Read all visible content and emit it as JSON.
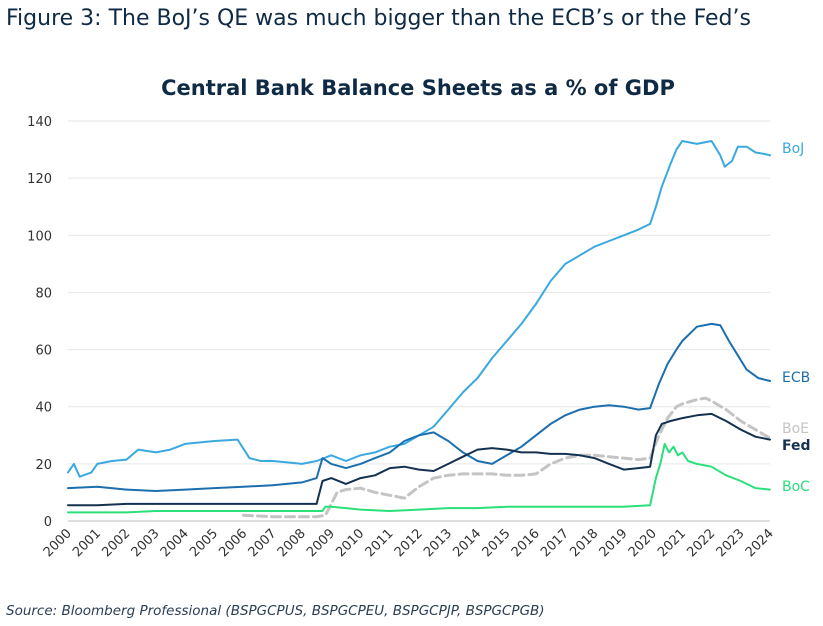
{
  "figure_title": "Figure 3: The BoJ’s QE was much bigger than the ECB’s or the Fed’s",
  "source": "Source: Bloomberg Professional (BSPGCPUS, BSPGCPEU, BSPGCPJP, BSPGCPGB)",
  "chart_data": {
    "type": "line",
    "title": "Central Bank Balance Sheets as a % of GDP",
    "xlabel": "",
    "ylabel": "",
    "ylim": [
      0,
      140
    ],
    "xlim": [
      2000,
      2024
    ],
    "yticks": [
      0,
      20,
      40,
      60,
      80,
      100,
      120,
      140
    ],
    "xticks": [
      "2000",
      "2001",
      "2002",
      "2003",
      "2004",
      "2005",
      "2006",
      "2007",
      "2008",
      "2009",
      "2010",
      "2011",
      "2012",
      "2013",
      "2014",
      "2015",
      "2016",
      "2017",
      "2018",
      "2019",
      "2020",
      "2021",
      "2022",
      "2023",
      "2024"
    ],
    "grid": "horizontal",
    "legend": "series labels at right end of lines",
    "series": [
      {
        "name": "BoJ",
        "color": "#3aa9df",
        "dash": false,
        "points": [
          [
            2000,
            17
          ],
          [
            2000.2,
            20
          ],
          [
            2000.4,
            15.5
          ],
          [
            2000.8,
            17
          ],
          [
            2001,
            20
          ],
          [
            2001.5,
            21
          ],
          [
            2002,
            21.5
          ],
          [
            2002.4,
            25
          ],
          [
            2003,
            24
          ],
          [
            2003.5,
            25
          ],
          [
            2004,
            27
          ],
          [
            2005,
            28
          ],
          [
            2005.8,
            28.5
          ],
          [
            2006.2,
            22
          ],
          [
            2006.6,
            21
          ],
          [
            2007,
            21
          ],
          [
            2007.5,
            20.5
          ],
          [
            2008,
            20
          ],
          [
            2008.5,
            21
          ],
          [
            2009,
            23
          ],
          [
            2009.5,
            21
          ],
          [
            2010,
            23
          ],
          [
            2010.5,
            24
          ],
          [
            2011,
            26
          ],
          [
            2011.5,
            27
          ],
          [
            2012,
            30
          ],
          [
            2012.5,
            33
          ],
          [
            2013,
            39
          ],
          [
            2013.5,
            45
          ],
          [
            2014,
            50
          ],
          [
            2014.5,
            57
          ],
          [
            2015,
            63
          ],
          [
            2015.5,
            69
          ],
          [
            2016,
            76
          ],
          [
            2016.5,
            84
          ],
          [
            2017,
            90
          ],
          [
            2017.5,
            93
          ],
          [
            2018,
            96
          ],
          [
            2018.5,
            98
          ],
          [
            2019,
            100
          ],
          [
            2019.5,
            102
          ],
          [
            2019.9,
            104
          ],
          [
            2020.1,
            110
          ],
          [
            2020.3,
            117
          ],
          [
            2020.6,
            125
          ],
          [
            2020.8,
            130
          ],
          [
            2021,
            133
          ],
          [
            2021.5,
            132
          ],
          [
            2022,
            133
          ],
          [
            2022.3,
            128
          ],
          [
            2022.45,
            124
          ],
          [
            2022.7,
            126
          ],
          [
            2022.9,
            131
          ],
          [
            2023.2,
            131
          ],
          [
            2023.5,
            129
          ],
          [
            2023.8,
            128.5
          ],
          [
            2024,
            128
          ]
        ]
      },
      {
        "name": "ECB",
        "color": "#1b6fae",
        "dash": false,
        "points": [
          [
            2000,
            11.5
          ],
          [
            2001,
            12
          ],
          [
            2002,
            11
          ],
          [
            2003,
            10.5
          ],
          [
            2004,
            11
          ],
          [
            2005,
            11.5
          ],
          [
            2006,
            12
          ],
          [
            2007,
            12.5
          ],
          [
            2008,
            13.5
          ],
          [
            2008.5,
            15
          ],
          [
            2008.7,
            22
          ],
          [
            2009,
            20
          ],
          [
            2009.5,
            18.5
          ],
          [
            2010,
            20
          ],
          [
            2010.5,
            22
          ],
          [
            2011,
            24
          ],
          [
            2011.5,
            28
          ],
          [
            2012,
            30
          ],
          [
            2012.5,
            31
          ],
          [
            2013,
            28
          ],
          [
            2013.5,
            24
          ],
          [
            2014,
            21
          ],
          [
            2014.5,
            20
          ],
          [
            2015,
            23
          ],
          [
            2015.5,
            26
          ],
          [
            2016,
            30
          ],
          [
            2016.5,
            34
          ],
          [
            2017,
            37
          ],
          [
            2017.5,
            39
          ],
          [
            2018,
            40
          ],
          [
            2018.5,
            40.5
          ],
          [
            2019,
            40
          ],
          [
            2019.5,
            39
          ],
          [
            2019.9,
            39.5
          ],
          [
            2020.2,
            48
          ],
          [
            2020.5,
            55
          ],
          [
            2020.8,
            60
          ],
          [
            2021,
            63
          ],
          [
            2021.5,
            68
          ],
          [
            2022,
            69
          ],
          [
            2022.3,
            68.5
          ],
          [
            2022.6,
            63
          ],
          [
            2022.9,
            58
          ],
          [
            2023.2,
            53
          ],
          [
            2023.6,
            50
          ],
          [
            2024,
            49
          ]
        ]
      },
      {
        "name": "BoE",
        "color": "#c4c4c4",
        "dash": true,
        "points": [
          [
            2006,
            2
          ],
          [
            2007,
            1.5
          ],
          [
            2008,
            1.5
          ],
          [
            2008.5,
            1.5
          ],
          [
            2008.8,
            2
          ],
          [
            2009,
            6
          ],
          [
            2009.2,
            10
          ],
          [
            2009.5,
            11
          ],
          [
            2010,
            11.5
          ],
          [
            2010.5,
            10
          ],
          [
            2011,
            9
          ],
          [
            2011.5,
            8
          ],
          [
            2012,
            12
          ],
          [
            2012.5,
            15
          ],
          [
            2013,
            16
          ],
          [
            2013.5,
            16.5
          ],
          [
            2014,
            16.5
          ],
          [
            2014.5,
            16.5
          ],
          [
            2015,
            16
          ],
          [
            2015.5,
            16
          ],
          [
            2016,
            16.5
          ],
          [
            2016.5,
            20
          ],
          [
            2017,
            22
          ],
          [
            2017.5,
            23
          ],
          [
            2018,
            23
          ],
          [
            2018.5,
            22.5
          ],
          [
            2019,
            22
          ],
          [
            2019.5,
            21.5
          ],
          [
            2019.9,
            22
          ],
          [
            2020.2,
            30
          ],
          [
            2020.5,
            36
          ],
          [
            2020.8,
            40
          ],
          [
            2021,
            41
          ],
          [
            2021.5,
            42.5
          ],
          [
            2021.8,
            43
          ],
          [
            2022,
            42
          ],
          [
            2022.5,
            39
          ],
          [
            2023,
            35
          ],
          [
            2023.5,
            32
          ],
          [
            2024,
            29
          ]
        ]
      },
      {
        "name": "Fed",
        "color": "#14324f",
        "dash": false,
        "points": [
          [
            2000,
            5.5
          ],
          [
            2001,
            5.5
          ],
          [
            2002,
            6
          ],
          [
            2003,
            6
          ],
          [
            2004,
            6
          ],
          [
            2005,
            6
          ],
          [
            2006,
            6
          ],
          [
            2007,
            6
          ],
          [
            2008,
            6
          ],
          [
            2008.5,
            6
          ],
          [
            2008.7,
            14
          ],
          [
            2009,
            15
          ],
          [
            2009.5,
            13
          ],
          [
            2010,
            15
          ],
          [
            2010.5,
            16
          ],
          [
            2011,
            18.5
          ],
          [
            2011.5,
            19
          ],
          [
            2012,
            18
          ],
          [
            2012.5,
            17.5
          ],
          [
            2013,
            20
          ],
          [
            2013.5,
            22.5
          ],
          [
            2014,
            25
          ],
          [
            2014.5,
            25.5
          ],
          [
            2015,
            25
          ],
          [
            2015.5,
            24
          ],
          [
            2016,
            24
          ],
          [
            2016.5,
            23.5
          ],
          [
            2017,
            23.5
          ],
          [
            2017.5,
            23
          ],
          [
            2018,
            22
          ],
          [
            2018.5,
            20
          ],
          [
            2019,
            18
          ],
          [
            2019.5,
            18.5
          ],
          [
            2019.9,
            19
          ],
          [
            2020.1,
            30
          ],
          [
            2020.3,
            34
          ],
          [
            2020.6,
            35
          ],
          [
            2021,
            36
          ],
          [
            2021.5,
            37
          ],
          [
            2022,
            37.5
          ],
          [
            2022.5,
            35
          ],
          [
            2023,
            32
          ],
          [
            2023.5,
            29.5
          ],
          [
            2024,
            28.5
          ]
        ]
      },
      {
        "name": "BoC",
        "color": "#29e07a",
        "dash": false,
        "points": [
          [
            2000,
            3
          ],
          [
            2001,
            3
          ],
          [
            2002,
            3
          ],
          [
            2003,
            3.5
          ],
          [
            2004,
            3.5
          ],
          [
            2005,
            3.5
          ],
          [
            2006,
            3.5
          ],
          [
            2007,
            3.5
          ],
          [
            2008,
            3.5
          ],
          [
            2008.7,
            3.5
          ],
          [
            2008.8,
            5
          ],
          [
            2009,
            5
          ],
          [
            2009.5,
            4.5
          ],
          [
            2010,
            4
          ],
          [
            2011,
            3.5
          ],
          [
            2012,
            4
          ],
          [
            2013,
            4.5
          ],
          [
            2014,
            4.5
          ],
          [
            2015,
            5
          ],
          [
            2016,
            5
          ],
          [
            2017,
            5
          ],
          [
            2018,
            5
          ],
          [
            2019,
            5
          ],
          [
            2019.9,
            5.5
          ],
          [
            2020.1,
            15
          ],
          [
            2020.25,
            20
          ],
          [
            2020.4,
            27
          ],
          [
            2020.55,
            24
          ],
          [
            2020.7,
            26
          ],
          [
            2020.85,
            23
          ],
          [
            2021,
            24
          ],
          [
            2021.2,
            21
          ],
          [
            2021.5,
            20
          ],
          [
            2022,
            19
          ],
          [
            2022.5,
            16
          ],
          [
            2023,
            14
          ],
          [
            2023.5,
            11.5
          ],
          [
            2024,
            11
          ]
        ]
      }
    ]
  }
}
